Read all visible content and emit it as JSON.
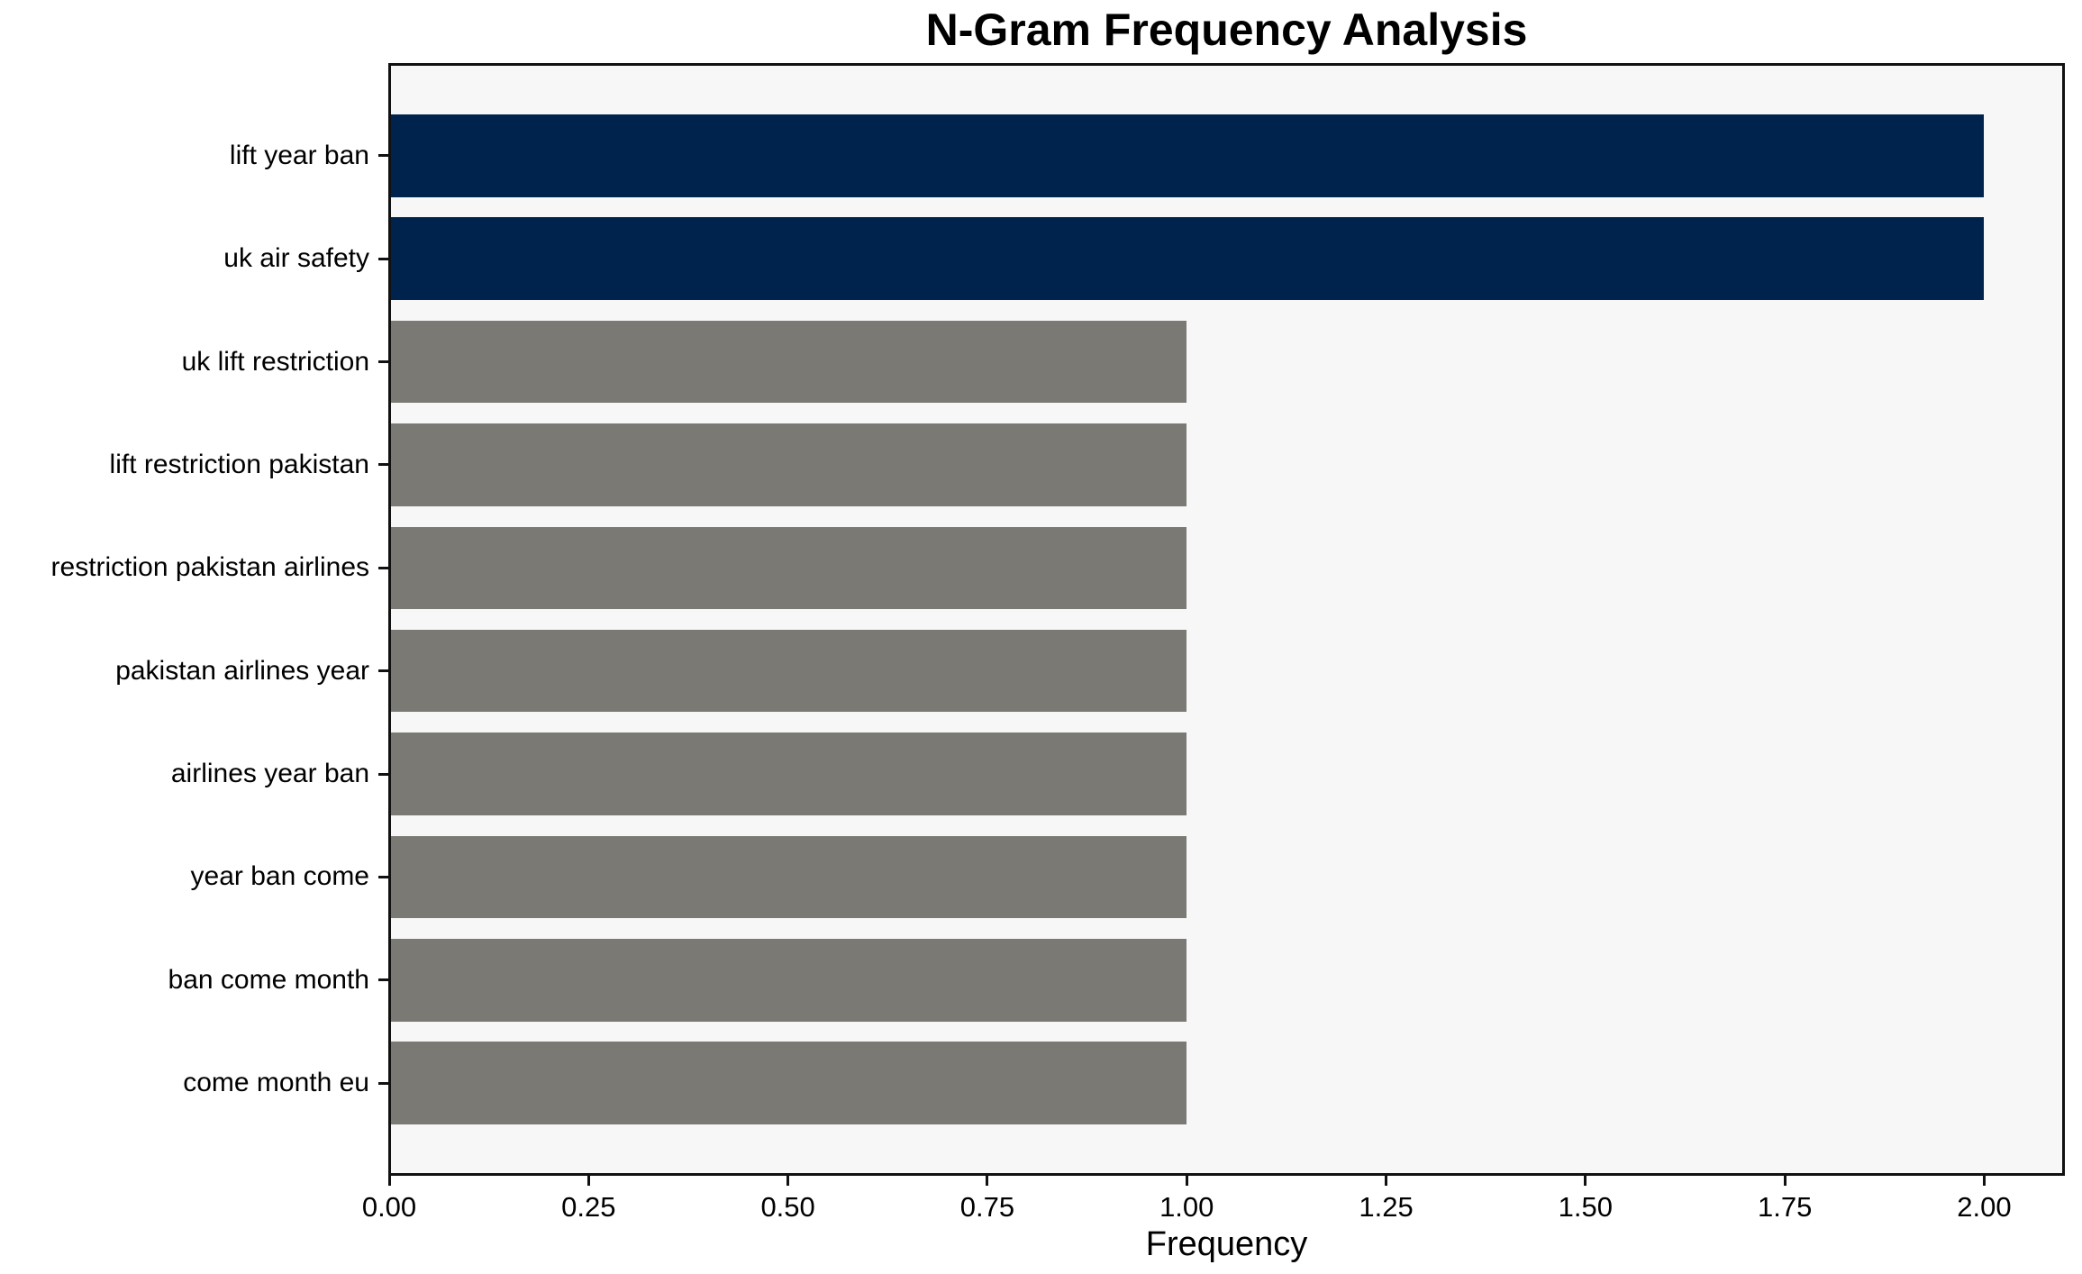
{
  "chart_data": {
    "type": "bar",
    "orientation": "horizontal",
    "title": "N-Gram Frequency Analysis",
    "xlabel": "Frequency",
    "ylabel": "",
    "categories": [
      "lift year ban",
      "uk air safety",
      "uk lift restriction",
      "lift restriction pakistan",
      "restriction pakistan airlines",
      "pakistan airlines year",
      "airlines year ban",
      "year ban come",
      "ban come month",
      "come month eu"
    ],
    "values": [
      2,
      2,
      1,
      1,
      1,
      1,
      1,
      1,
      1,
      1
    ],
    "bar_colors": [
      "#00234d",
      "#00234d",
      "#7a7974",
      "#7a7974",
      "#7a7974",
      "#7a7974",
      "#7a7974",
      "#7a7974",
      "#7a7974",
      "#7a7974"
    ],
    "highlight_color": "#00234d",
    "default_color": "#7a7974",
    "xlim": [
      0,
      2.1
    ],
    "xtick_values": [
      0,
      0.25,
      0.5,
      0.75,
      1.0,
      1.25,
      1.5,
      1.75,
      2.0
    ],
    "xtick_labels": [
      "0.00",
      "0.25",
      "0.50",
      "0.75",
      "1.00",
      "1.25",
      "1.50",
      "1.75",
      "2.00"
    ],
    "grid": false,
    "legend": null,
    "plot_background": "#f7f7f7",
    "figure_background": "#ffffff"
  }
}
